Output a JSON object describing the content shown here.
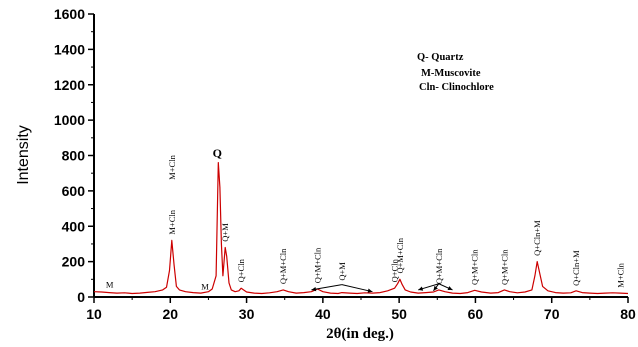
{
  "chart_data": {
    "type": "line",
    "xlabel": "2θ(in deg.)",
    "ylabel": "Intensity",
    "xlim": [
      10,
      80
    ],
    "ylim": [
      0,
      1600
    ],
    "x_ticks": [
      10,
      20,
      30,
      40,
      50,
      60,
      70,
      80
    ],
    "y_ticks": [
      0,
      200,
      400,
      600,
      800,
      1000,
      1200,
      1400,
      1600
    ],
    "line_color": "#cc0000",
    "grid": false,
    "legend": {
      "position": "top-right",
      "entries": [
        "Q- Quartz",
        "M-Muscovite",
        "Cln- Clinochlore"
      ]
    },
    "series": [
      {
        "x": [
          10,
          11,
          12,
          13,
          14,
          15,
          16,
          17,
          18,
          19,
          19.5,
          19.9,
          20.2,
          20.5,
          20.8,
          21.2,
          22,
          23,
          24,
          25,
          25.5,
          26,
          26.3,
          26.5,
          26.7,
          26.9,
          27.2,
          27.4,
          27.7,
          28,
          28.5,
          29,
          29.3,
          29.6,
          30,
          31,
          32,
          33,
          34,
          34.8,
          35.5,
          36.5,
          37.5,
          38.5,
          39.3,
          40,
          41,
          42,
          42.5,
          43.5,
          44.5,
          45.5,
          46.5,
          47.5,
          48.5,
          49.4,
          49.8,
          50.1,
          50.4,
          50.8,
          51.5,
          52.5,
          53.5,
          54.5,
          55.2,
          56,
          57,
          58,
          59,
          59.9,
          60.8,
          62,
          63,
          63.8,
          64.5,
          65.5,
          66.5,
          67.4,
          67.8,
          68.1,
          68.4,
          68.8,
          69.5,
          70.5,
          71.5,
          72.5,
          73.2,
          74,
          75,
          76,
          77,
          78,
          79,
          80
        ],
        "y": [
          30,
          28,
          25,
          22,
          24,
          20,
          22,
          26,
          30,
          40,
          55,
          150,
          320,
          180,
          60,
          40,
          30,
          25,
          22,
          30,
          45,
          120,
          760,
          620,
          300,
          120,
          280,
          230,
          80,
          40,
          30,
          35,
          50,
          40,
          28,
          22,
          20,
          24,
          30,
          40,
          30,
          22,
          25,
          30,
          45,
          30,
          22,
          20,
          25,
          22,
          20,
          24,
          22,
          25,
          35,
          50,
          75,
          100,
          70,
          40,
          28,
          22,
          25,
          28,
          40,
          30,
          22,
          20,
          25,
          38,
          28,
          22,
          25,
          40,
          30,
          24,
          28,
          40,
          120,
          200,
          140,
          60,
          35,
          25,
          22,
          24,
          35,
          25,
          22,
          20,
          22,
          24,
          22,
          20
        ]
      }
    ],
    "annotations": [
      {
        "text": "M",
        "x": 11,
        "y": 30
      },
      {
        "text": "M+Cln",
        "x": 20.2,
        "y": 640
      },
      {
        "text": "M+Cln",
        "x": 20.2,
        "y": 330
      },
      {
        "text": "Q",
        "x": 26.3,
        "y": 770
      },
      {
        "text": "M",
        "x": 23.5,
        "y": 20
      },
      {
        "text": "Q+M",
        "x": 27.2,
        "y": 290
      },
      {
        "text": "Q+Cln",
        "x": 29.3,
        "y": 60
      },
      {
        "text": "Q+M+Cln",
        "x": 34.8,
        "y": 50
      },
      {
        "text": "Q+M+Cln",
        "x": 39.3,
        "y": 55
      },
      {
        "text": "Q+M",
        "x": 42.5,
        "y": 70
      },
      {
        "text": "Q+Cln",
        "x": 49.4,
        "y": 60
      },
      {
        "text": "Q+M+Cln",
        "x": 50.1,
        "y": 110
      },
      {
        "text": "Q+M+Cln",
        "x": 55.2,
        "y": 50
      },
      {
        "text": "Q+M+Cln",
        "x": 59.9,
        "y": 45
      },
      {
        "text": "Q+M+Cln",
        "x": 63.8,
        "y": 45
      },
      {
        "text": "Q+Cln+M",
        "x": 68.1,
        "y": 210
      },
      {
        "text": "Q+Cln+M",
        "x": 73.2,
        "y": 40
      },
      {
        "text": "M+Cln",
        "x": 79,
        "y": 30
      }
    ]
  }
}
